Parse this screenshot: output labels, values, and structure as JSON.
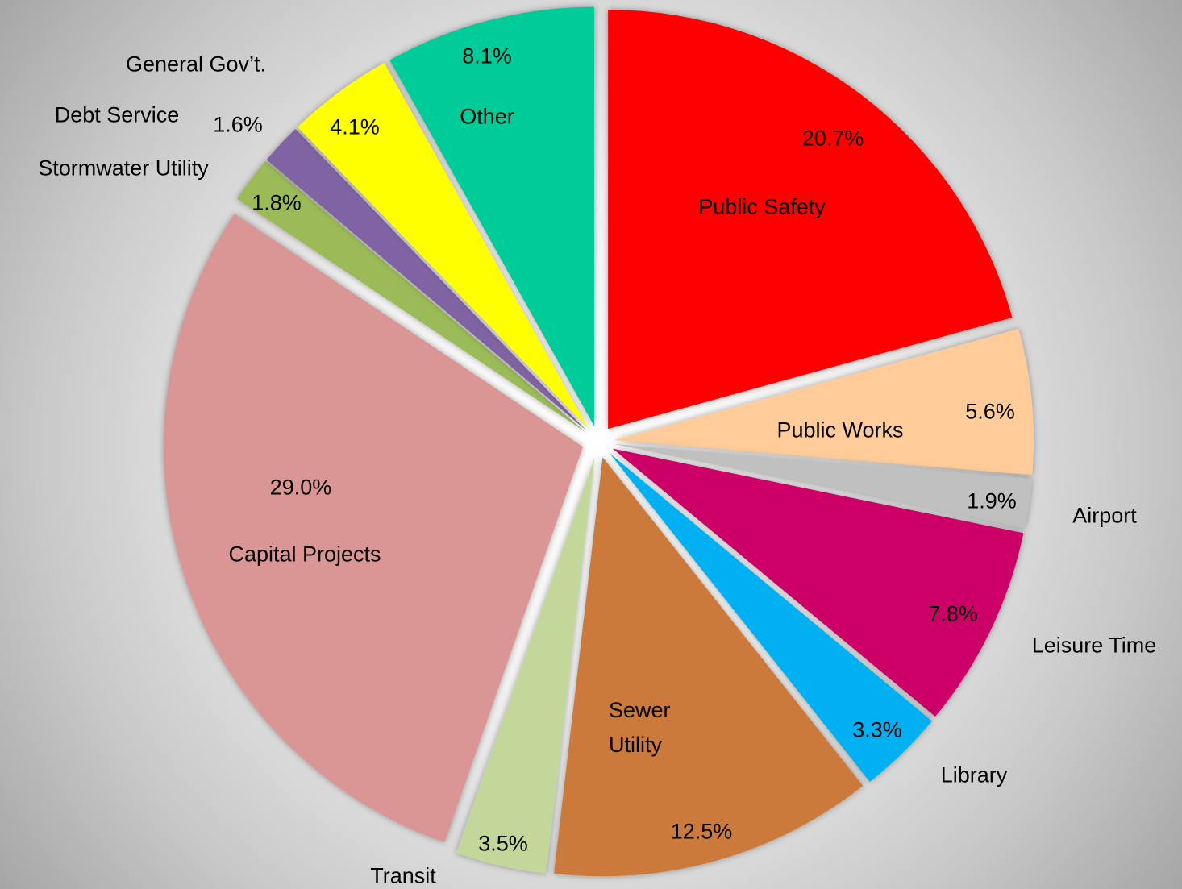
{
  "chart_data": {
    "type": "pie",
    "categories": [
      "Public Safety",
      "Public Works",
      "Airport",
      "Leisure Time",
      "Library",
      "Sewer Utility",
      "Transit",
      "Capital Projects",
      "Stormwater Utility",
      "Debt Service",
      "General Gov’t.",
      "Other"
    ],
    "values": [
      20.7,
      5.6,
      1.9,
      7.8,
      3.3,
      12.5,
      3.5,
      29.0,
      1.8,
      1.6,
      4.1,
      8.1
    ],
    "value_labels": [
      "20.7%",
      "5.6%",
      "1.9%",
      "7.8%",
      "3.3%",
      "12.5%",
      "3.5%",
      "29.0%",
      "1.8%",
      "1.6%",
      "4.1%",
      "8.1%"
    ],
    "colors": [
      "#ff0000",
      "#ffcc99",
      "#c0c0c0",
      "#cc0066",
      "#00b0f0",
      "#cc7a3a",
      "#c4d79b",
      "#da9694",
      "#9bbb59",
      "#8064a2",
      "#ffff00",
      "#00cc99"
    ]
  }
}
